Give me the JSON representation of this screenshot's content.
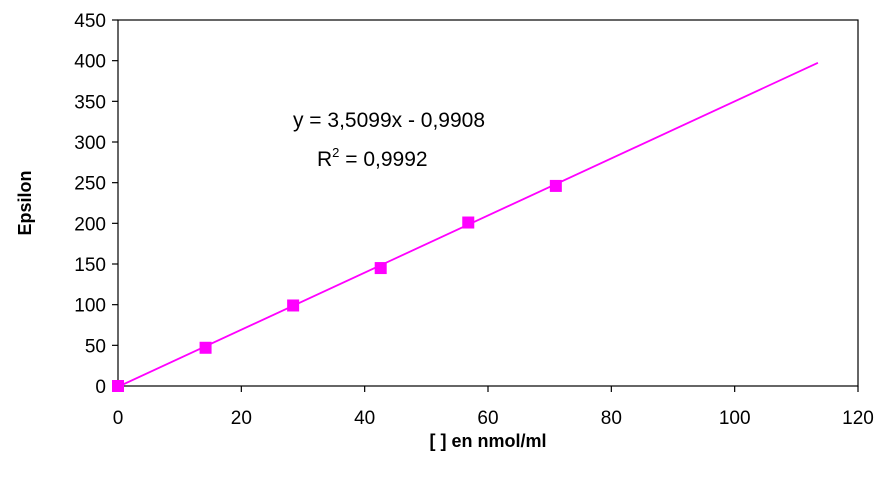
{
  "chart_data": {
    "type": "scatter",
    "title": "",
    "xlabel": "[ ] en nmol/ml",
    "ylabel": "Epsilon",
    "xlim": [
      0,
      120
    ],
    "ylim": [
      0,
      450
    ],
    "x_ticks": [
      0,
      20,
      40,
      60,
      80,
      100,
      120
    ],
    "y_ticks": [
      0,
      50,
      100,
      150,
      200,
      250,
      300,
      350,
      400,
      450
    ],
    "grid": false,
    "legend": "none",
    "series": [
      {
        "points": [
          {
            "x": 0,
            "y": 0
          },
          {
            "x": 14.2,
            "y": 47
          },
          {
            "x": 28.4,
            "y": 99
          },
          {
            "x": 42.6,
            "y": 145
          },
          {
            "x": 56.8,
            "y": 201
          },
          {
            "x": 71,
            "y": 246
          }
        ]
      }
    ],
    "trendline": {
      "slope": 3.5099,
      "intercept": -0.9908,
      "x_range": [
        0,
        113.5
      ]
    },
    "annotations": {
      "equation": "y = 3,5099x - 0,9908",
      "r2_prefix": "R",
      "r2_sup": "2",
      "r2_value": " = 0,9992"
    },
    "colors": {
      "series": "#ff00ff",
      "axis": "#000000"
    }
  }
}
